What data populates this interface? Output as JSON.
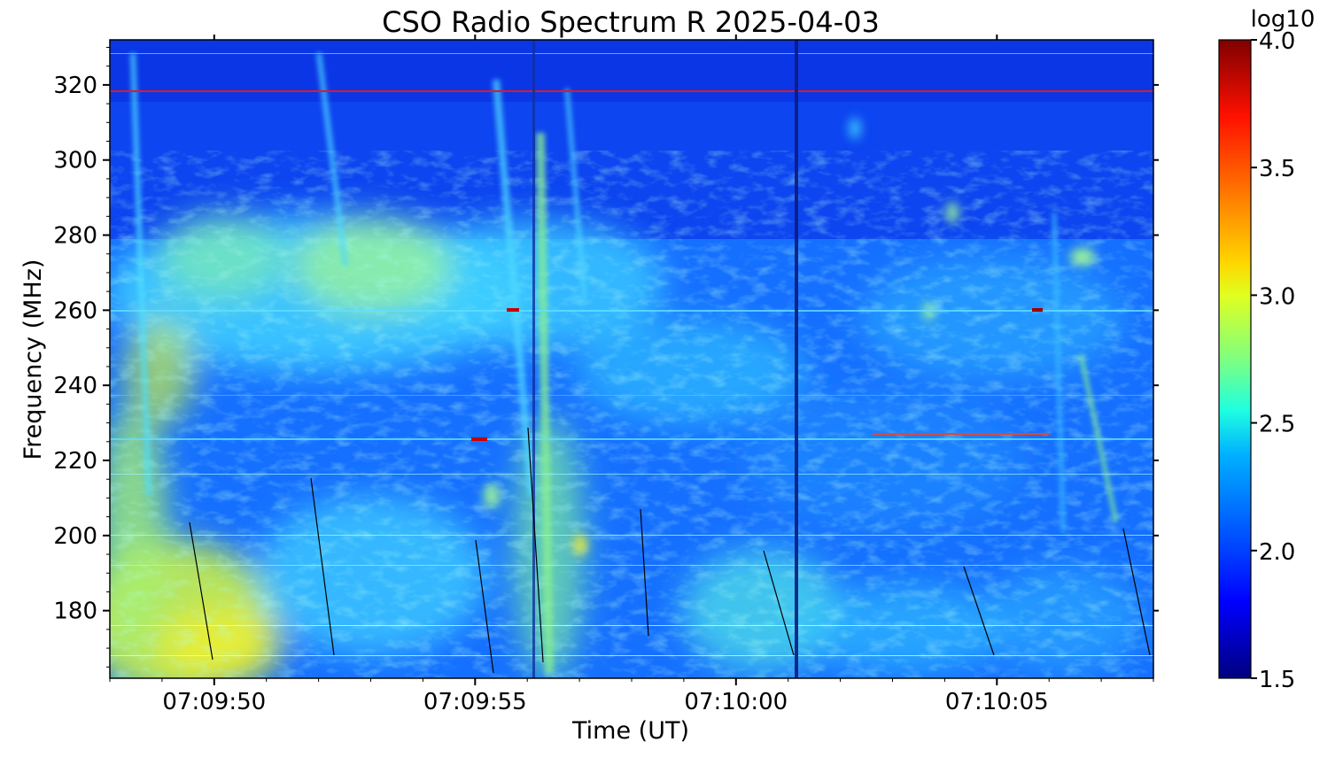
{
  "chart_data": {
    "type": "heatmap",
    "title": "CSO Radio Spectrum R 2025-04-03",
    "xlabel": "Time (UT)",
    "ylabel": "Frequency (MHz)",
    "x_range": [
      "07:09:48",
      "07:10:08"
    ],
    "ylim": [
      162,
      332
    ],
    "x_ticks": [
      "07:09:50",
      "07:09:55",
      "07:10:00",
      "07:10:05"
    ],
    "y_ticks": [
      180,
      200,
      220,
      240,
      260,
      280,
      300,
      320
    ],
    "colorbar": {
      "label": "log10",
      "range": [
        1.5,
        4.0
      ],
      "ticks": [
        "1.5",
        "2.0",
        "2.5",
        "3.0",
        "3.5",
        "4.0"
      ],
      "colormap": "jet"
    },
    "features": [
      {
        "kind": "enhanced-band",
        "t_start": "07:09:48",
        "t_end": "07:10:00",
        "f_low": 240,
        "f_high": 282,
        "level": 2.75
      },
      {
        "kind": "strong-emission",
        "t_start": "07:09:48",
        "t_end": "07:09:51",
        "f_low": 162,
        "f_high": 200,
        "level": 3.0
      },
      {
        "kind": "quiet-region",
        "t_start": "07:09:48",
        "t_end": "07:10:08",
        "f_low": 285,
        "f_high": 332,
        "level": 1.9
      },
      {
        "kind": "rfi-line",
        "freq": 318,
        "level": 3.8
      },
      {
        "kind": "rfi-line",
        "freq": 260,
        "level": 3.6
      },
      {
        "kind": "rfi-line",
        "freq": 226,
        "level": 3.5
      }
    ]
  }
}
